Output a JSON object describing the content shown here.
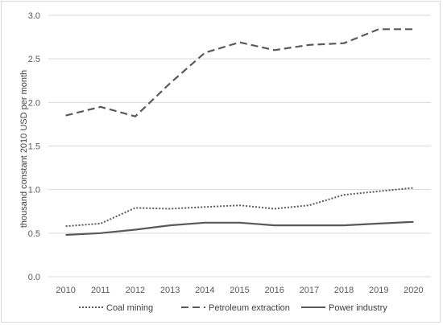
{
  "chart_data": {
    "type": "line",
    "title": "",
    "xlabel": "",
    "ylabel": "thousand constant 2010 USD per month",
    "ylim": [
      0.0,
      3.0
    ],
    "yticks": [
      "0.0",
      "0.5",
      "1.0",
      "1.5",
      "2.0",
      "2.5",
      "3.0"
    ],
    "categories": [
      "2010",
      "2011",
      "2012",
      "2013",
      "2014",
      "2015",
      "2016",
      "2017",
      "2018",
      "2019",
      "2020"
    ],
    "grid": "horizontal",
    "legend_position": "bottom",
    "series": [
      {
        "name": "Coal mining",
        "style": "dotted",
        "color": "#595959",
        "values": [
          0.58,
          0.61,
          0.79,
          0.78,
          0.8,
          0.82,
          0.78,
          0.82,
          0.94,
          0.98,
          1.02
        ]
      },
      {
        "name": "Petroleum extraction",
        "style": "dashed",
        "color": "#595959",
        "values": [
          1.85,
          1.95,
          1.84,
          2.22,
          2.57,
          2.69,
          2.6,
          2.66,
          2.68,
          2.84,
          2.84
        ]
      },
      {
        "name": "Power industry",
        "style": "solid",
        "color": "#595959",
        "values": [
          0.48,
          0.5,
          0.54,
          0.59,
          0.62,
          0.62,
          0.59,
          0.59,
          0.59,
          0.61,
          0.63
        ]
      }
    ]
  }
}
